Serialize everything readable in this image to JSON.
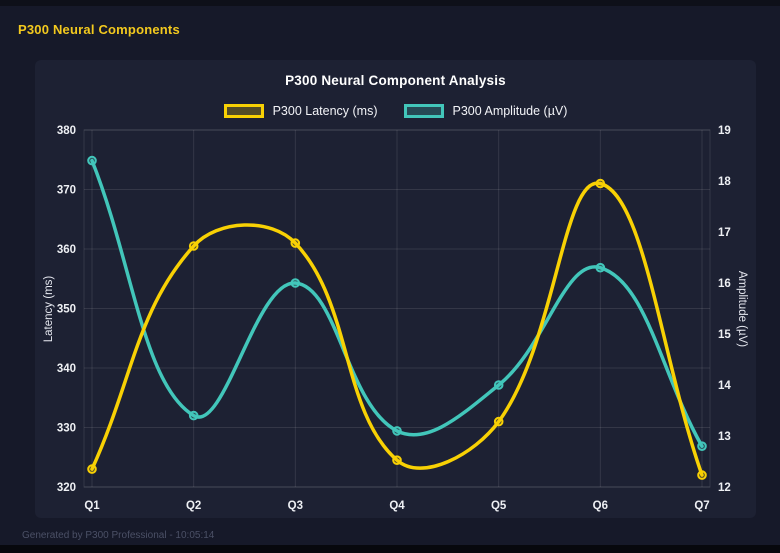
{
  "page": {
    "header_title": "P300 Neural Components",
    "footer": "Generated by P300 Professional - 10:05:14"
  },
  "colors": {
    "page_bg": "#161929",
    "card_bg": "#1d2133",
    "header_yellow": "#f3c91e",
    "grid": "rgba(255,255,255,0.10)",
    "tick_text": "#eef0f4",
    "footer_text": "#4b5066"
  },
  "chart_data": {
    "type": "line",
    "title": "P300 Neural Component Analysis",
    "categories": [
      "Q1",
      "Q2",
      "Q3",
      "Q4",
      "Q5",
      "Q6",
      "Q7"
    ],
    "series": [
      {
        "name": "P300 Latency (ms)",
        "axis": "left",
        "color": "#f8d104",
        "values": [
          323,
          360.5,
          361,
          324.5,
          331,
          371,
          322
        ]
      },
      {
        "name": "P300 Amplitude (µV)",
        "axis": "right",
        "color": "#42c6ba",
        "values": [
          18.4,
          13.4,
          16.0,
          13.1,
          14.0,
          16.3,
          12.8
        ]
      }
    ],
    "left_axis": {
      "label": "Latency (ms)",
      "min": 320,
      "max": 380,
      "step": 10
    },
    "right_axis": {
      "label": "Amplitude (µV)",
      "min": 12,
      "max": 19,
      "step": 1
    },
    "grid": true,
    "legend_position": "top",
    "line_tension": 0.4
  }
}
